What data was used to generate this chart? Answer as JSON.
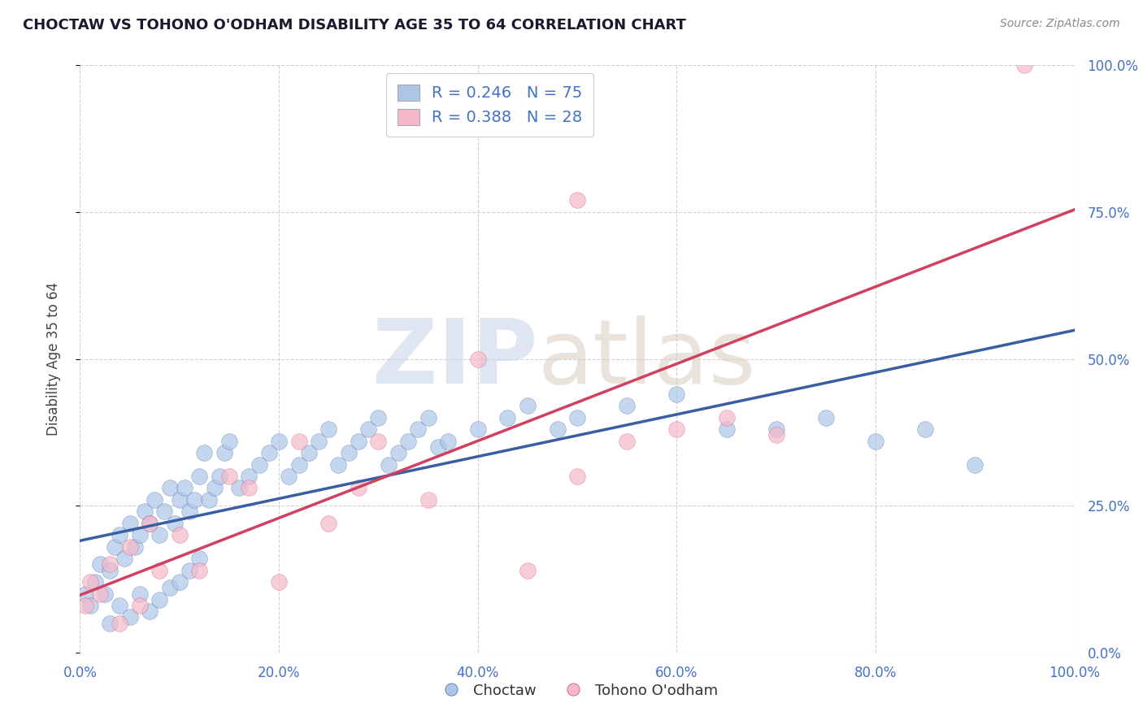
{
  "title": "CHOCTAW VS TOHONO O'ODHAM DISABILITY AGE 35 TO 64 CORRELATION CHART",
  "source": "Source: ZipAtlas.com",
  "ylabel": "Disability Age 35 to 64",
  "choctaw_R": 0.246,
  "choctaw_N": 75,
  "tohono_R": 0.388,
  "tohono_N": 28,
  "choctaw_color": "#adc6e8",
  "tohono_color": "#f5b8c8",
  "choctaw_line_color": "#3a5fa0",
  "tohono_line_color": "#d04060",
  "background_color": "#ffffff",
  "title_color": "#1a1a2e",
  "axis_label_color": "#444444",
  "tick_color": "#4472c4",
  "grid_color": "#cccccc",
  "legend_box_color_choctaw": "#adc6e8",
  "legend_box_color_tohono": "#f5b8c8",
  "legend_label_choctaw": "Choctaw",
  "legend_label_tohono": "Tohono O'odham",
  "legend_r_color": "#333333",
  "legend_rval_color": "#4472c4",
  "xlim": [
    0,
    100
  ],
  "ylim": [
    0,
    100
  ],
  "xticks": [
    0,
    20,
    40,
    60,
    80,
    100
  ],
  "xticklabels": [
    "0.0%",
    "20.0%",
    "40.0%",
    "60.0%",
    "80.0%",
    "100.0%"
  ],
  "yticks": [
    0,
    25,
    50,
    75,
    100
  ],
  "yticklabels": [
    "0.0%",
    "25.0%",
    "50.0%",
    "75.0%",
    "100.0%"
  ],
  "choctaw_x": [
    0.5,
    1.0,
    1.5,
    2.0,
    2.5,
    3.0,
    3.5,
    4.0,
    4.5,
    5.0,
    5.5,
    6.0,
    6.5,
    7.0,
    7.5,
    8.0,
    8.5,
    9.0,
    9.5,
    10.0,
    10.5,
    11.0,
    11.5,
    12.0,
    12.5,
    13.0,
    13.5,
    14.0,
    14.5,
    15.0,
    16.0,
    17.0,
    18.0,
    19.0,
    20.0,
    21.0,
    22.0,
    23.0,
    24.0,
    25.0,
    26.0,
    27.0,
    28.0,
    29.0,
    30.0,
    31.0,
    32.0,
    33.0,
    34.0,
    35.0,
    36.0,
    37.0,
    40.0,
    43.0,
    45.0,
    48.0,
    50.0,
    55.0,
    60.0,
    65.0,
    70.0,
    75.0,
    80.0,
    85.0,
    90.0,
    3.0,
    4.0,
    5.0,
    6.0,
    7.0,
    8.0,
    9.0,
    10.0,
    11.0,
    12.0
  ],
  "choctaw_y": [
    10.0,
    8.0,
    12.0,
    15.0,
    10.0,
    14.0,
    18.0,
    20.0,
    16.0,
    22.0,
    18.0,
    20.0,
    24.0,
    22.0,
    26.0,
    20.0,
    24.0,
    28.0,
    22.0,
    26.0,
    28.0,
    24.0,
    26.0,
    30.0,
    34.0,
    26.0,
    28.0,
    30.0,
    34.0,
    36.0,
    28.0,
    30.0,
    32.0,
    34.0,
    36.0,
    30.0,
    32.0,
    34.0,
    36.0,
    38.0,
    32.0,
    34.0,
    36.0,
    38.0,
    40.0,
    32.0,
    34.0,
    36.0,
    38.0,
    40.0,
    35.0,
    36.0,
    38.0,
    40.0,
    42.0,
    38.0,
    40.0,
    42.0,
    44.0,
    38.0,
    38.0,
    40.0,
    36.0,
    38.0,
    32.0,
    5.0,
    8.0,
    6.0,
    10.0,
    7.0,
    9.0,
    11.0,
    12.0,
    14.0,
    16.0
  ],
  "tohono_x": [
    0.5,
    1.0,
    2.0,
    3.0,
    4.0,
    5.0,
    6.0,
    7.0,
    8.0,
    10.0,
    12.0,
    15.0,
    17.0,
    20.0,
    22.0,
    25.0,
    28.0,
    30.0,
    35.0,
    40.0,
    45.0,
    50.0,
    55.0,
    60.0,
    65.0,
    70.0,
    95.0,
    50.0
  ],
  "tohono_y": [
    8.0,
    12.0,
    10.0,
    15.0,
    5.0,
    18.0,
    8.0,
    22.0,
    14.0,
    20.0,
    14.0,
    30.0,
    28.0,
    12.0,
    36.0,
    22.0,
    28.0,
    36.0,
    26.0,
    50.0,
    14.0,
    30.0,
    36.0,
    38.0,
    40.0,
    37.0,
    100.0,
    77.0
  ]
}
